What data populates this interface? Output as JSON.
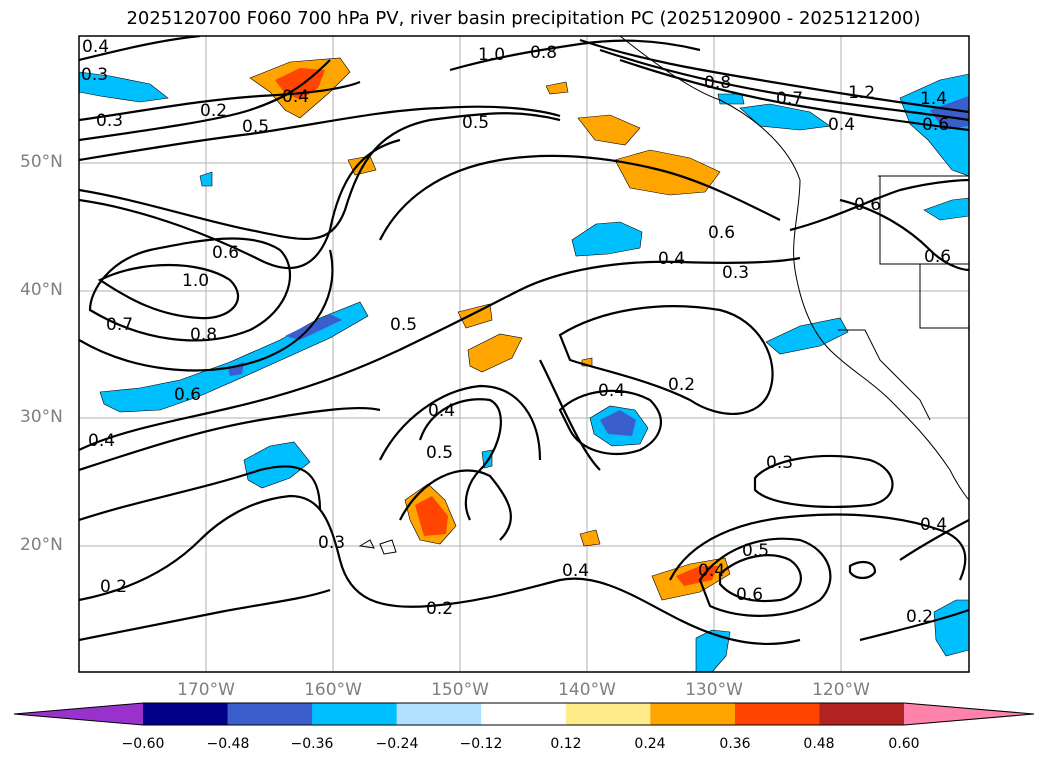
{
  "title": "2025120700 F060 700 hPa PV, river basin precipitation PC (2025120900 - 2025121200)",
  "map": {
    "lat_labels": [
      "50°N",
      "40°N",
      "30°N",
      "20°N"
    ],
    "lon_labels": [
      "170°W",
      "160°W",
      "150°W",
      "140°W",
      "130°W",
      "120°W"
    ],
    "contour_labels": [
      "0.4",
      "0.3",
      "0.2",
      "0.3",
      "0.5",
      "0.4",
      "0.5",
      "1.0",
      "0.8",
      "0.8",
      "0.7",
      "1.2",
      "1.4",
      "0.6",
      "0.4",
      "0.6",
      "0.6",
      "0.6",
      "1.0",
      "0.7",
      "0.8",
      "0.6",
      "0.4",
      "0.5",
      "0.4",
      "0.6",
      "0.4",
      "0.3",
      "0.2",
      "0.4",
      "0.5",
      "0.3",
      "0.2",
      "0.4",
      "0.3",
      "0.4",
      "0.5",
      "0.6",
      "0.2",
      "0.2",
      "0.4"
    ],
    "colors": {
      "pos_024": "#ffa500",
      "pos_036": "#ff4500",
      "neg_024": "#00bfff",
      "neg_036": "#3c5fd0",
      "contour": "#000000"
    }
  },
  "colorbar": {
    "ticks": [
      "−0.60",
      "−0.48",
      "−0.36",
      "−0.24",
      "−0.12",
      "0.12",
      "0.24",
      "0.36",
      "0.48",
      "0.60"
    ],
    "colors": [
      "#9932cc",
      "#00008b",
      "#3a5fcd",
      "#00bfff",
      "#b0e2ff",
      "#ffffff",
      "#ffec8b",
      "#ffa500",
      "#ff4500",
      "#b22222",
      "#ff82ab"
    ]
  }
}
